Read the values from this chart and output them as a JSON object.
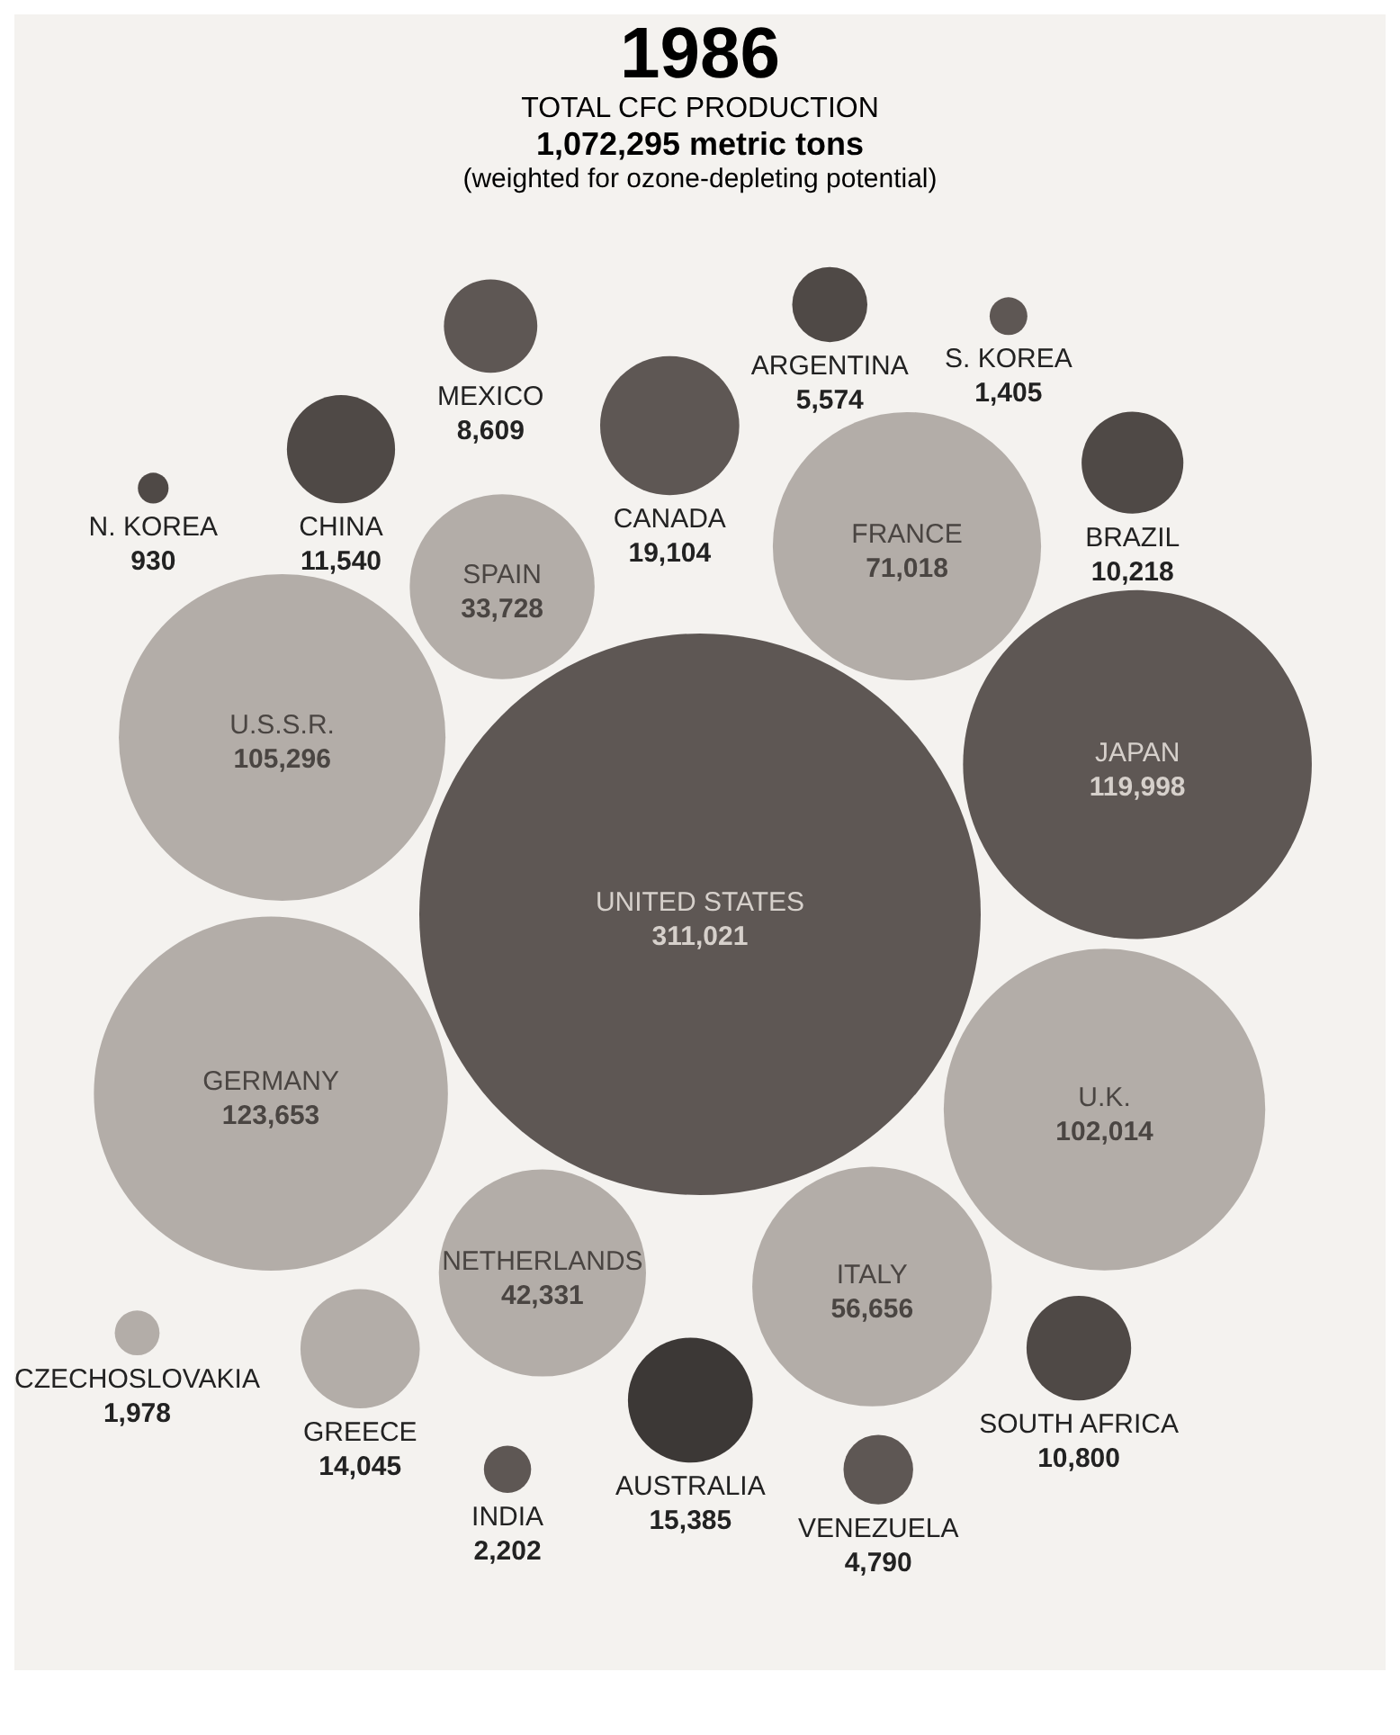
{
  "chart_data": {
    "type": "other",
    "title": "1986",
    "subtitle": "TOTAL CFC PRODUCTION",
    "annotations": [
      "1,072,295 metric tons",
      "(weighted for ozone-depleting potential)"
    ],
    "categories": [
      "UNITED STATES",
      "GERMANY",
      "JAPAN",
      "U.S.S.R.",
      "U.K.",
      "FRANCE",
      "ITALY",
      "NETHERLANDS",
      "SPAIN",
      "CANADA",
      "AUSTRALIA",
      "GREECE",
      "CHINA",
      "SOUTH AFRICA",
      "BRAZIL",
      "MEXICO",
      "ARGENTINA",
      "VENEZUELA",
      "INDIA",
      "CZECHOSLOVAKIA",
      "S. KOREA",
      "N. KOREA"
    ],
    "values": [
      311021,
      123653,
      119998,
      105296,
      102014,
      71018,
      56656,
      42331,
      33728,
      19104,
      15385,
      14045,
      11540,
      10800,
      10218,
      8609,
      5574,
      4790,
      2202,
      1978,
      1405,
      930
    ],
    "colors": [
      "#5e5754",
      "#b3ada8",
      "#5e5754",
      "#b3ada8",
      "#b3ada8",
      "#b3ada8",
      "#b3ada8",
      "#b3ada8",
      "#b3ada8",
      "#5e5754",
      "#3c3836",
      "#b3ada8",
      "#4f4946",
      "#4f4946",
      "#4f4946",
      "#5e5754",
      "#4f4946",
      "#5e5754",
      "#5e5754",
      "#b3ada8",
      "#5e5754",
      "#4f4946"
    ],
    "value_labels": [
      "311,021",
      "123,653",
      "119,998",
      "105,296",
      "102,014",
      "71,018",
      "56,656",
      "42,331",
      "33,728",
      "19,104",
      "15,385",
      "14,045",
      "11,540",
      "10,800",
      "10,218",
      "8,609",
      "5,574",
      "4,790",
      "2,202",
      "1,978",
      "1,405",
      "930"
    ]
  }
}
